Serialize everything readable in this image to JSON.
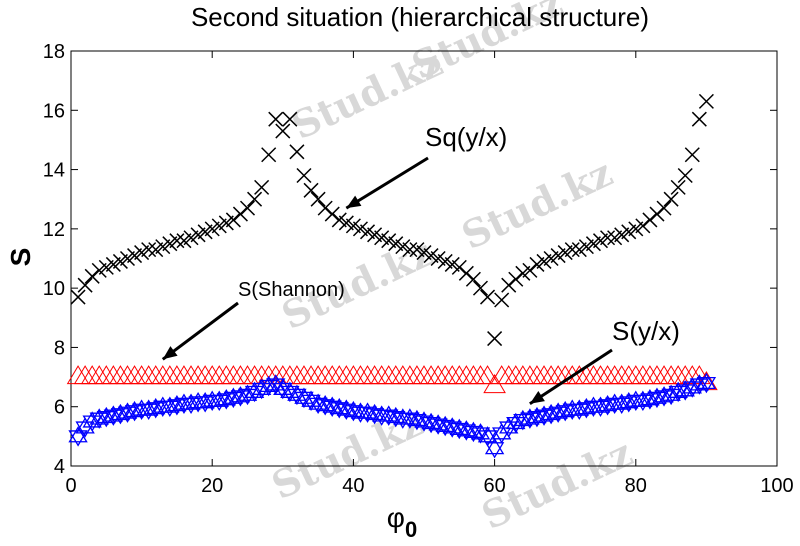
{
  "watermark": "Stud.kz",
  "chart_data": {
    "type": "scatter",
    "title": "Second situation (hierarchical structure)",
    "xlabel": "φ",
    "xlabel_sub": "0",
    "ylabel": "S",
    "xlim": [
      0,
      100
    ],
    "ylim": [
      4,
      18
    ],
    "xticks": [
      0,
      20,
      40,
      60,
      80,
      100
    ],
    "yticks": [
      4,
      6,
      8,
      10,
      12,
      14,
      16,
      18
    ],
    "grid": false,
    "annotations": [
      {
        "text": "Sq(y/x)",
        "arrow_to": [
          39,
          12.7
        ]
      },
      {
        "text": "S(Shannon)",
        "arrow_to": [
          13,
          7.6
        ]
      },
      {
        "text": "S(y/x)",
        "arrow_to": [
          65,
          6.1
        ]
      }
    ],
    "series": [
      {
        "name": "Sq(y/x)",
        "marker": "x",
        "color": "#000000",
        "x": [
          1,
          2,
          3,
          4,
          5,
          6,
          7,
          8,
          9,
          10,
          11,
          12,
          13,
          14,
          15,
          16,
          17,
          18,
          19,
          20,
          21,
          22,
          23,
          24,
          25,
          26,
          27,
          28,
          29,
          30,
          31,
          32,
          33,
          34,
          35,
          36,
          37,
          38,
          39,
          40,
          41,
          42,
          43,
          44,
          45,
          46,
          47,
          48,
          49,
          50,
          51,
          52,
          53,
          54,
          55,
          56,
          57,
          58,
          59,
          60,
          61,
          62,
          63,
          64,
          65,
          66,
          67,
          68,
          69,
          70,
          71,
          72,
          73,
          74,
          75,
          76,
          77,
          78,
          79,
          80,
          81,
          82,
          83,
          84,
          85,
          86,
          87,
          88,
          89,
          90
        ],
        "y": [
          9.7,
          10.1,
          10.4,
          10.6,
          10.7,
          10.8,
          10.9,
          11.0,
          11.1,
          11.2,
          11.3,
          11.3,
          11.4,
          11.5,
          11.6,
          11.6,
          11.7,
          11.8,
          11.9,
          12.0,
          12.1,
          12.2,
          12.3,
          12.5,
          12.7,
          13.0,
          13.4,
          14.5,
          15.7,
          15.3,
          15.7,
          14.6,
          13.8,
          13.3,
          13.0,
          12.7,
          12.5,
          12.3,
          12.2,
          12.1,
          12.0,
          11.9,
          11.8,
          11.7,
          11.6,
          11.5,
          11.4,
          11.3,
          11.3,
          11.2,
          11.1,
          11.0,
          10.9,
          10.8,
          10.7,
          10.5,
          10.3,
          10.0,
          9.7,
          8.3,
          9.6,
          10.1,
          10.3,
          10.5,
          10.6,
          10.8,
          10.9,
          11.0,
          11.1,
          11.2,
          11.3,
          11.3,
          11.4,
          11.5,
          11.6,
          11.7,
          11.7,
          11.8,
          11.9,
          12.0,
          12.1,
          12.3,
          12.5,
          12.7,
          13.0,
          13.4,
          13.8,
          14.5,
          15.7,
          16.3
        ]
      },
      {
        "name": "S(Shannon)",
        "marker": "triangle",
        "color": "#ff0000",
        "x": [
          1,
          2,
          3,
          4,
          5,
          6,
          7,
          8,
          9,
          10,
          11,
          12,
          13,
          14,
          15,
          16,
          17,
          18,
          19,
          20,
          21,
          22,
          23,
          24,
          25,
          26,
          27,
          28,
          29,
          30,
          31,
          32,
          33,
          34,
          35,
          36,
          37,
          38,
          39,
          40,
          41,
          42,
          43,
          44,
          45,
          46,
          47,
          48,
          49,
          50,
          51,
          52,
          53,
          54,
          55,
          56,
          57,
          58,
          59,
          60,
          61,
          62,
          63,
          64,
          65,
          66,
          67,
          68,
          69,
          70,
          71,
          72,
          73,
          74,
          75,
          76,
          77,
          78,
          79,
          80,
          81,
          82,
          83,
          84,
          85,
          86,
          87,
          88,
          89,
          90
        ],
        "y": [
          7.0,
          7.0,
          7.0,
          7.0,
          7.0,
          7.0,
          7.0,
          7.0,
          7.0,
          7.0,
          7.0,
          7.0,
          7.0,
          7.0,
          7.0,
          7.0,
          7.0,
          7.0,
          7.0,
          7.0,
          7.0,
          7.0,
          7.0,
          7.0,
          7.0,
          7.0,
          7.0,
          7.0,
          7.0,
          7.0,
          7.0,
          7.0,
          7.0,
          7.0,
          7.0,
          7.0,
          7.0,
          7.0,
          7.0,
          7.0,
          7.0,
          7.0,
          7.0,
          7.0,
          7.0,
          7.0,
          7.0,
          7.0,
          7.0,
          7.0,
          7.0,
          7.0,
          7.0,
          7.0,
          7.0,
          7.0,
          7.0,
          7.0,
          7.0,
          6.7,
          7.0,
          7.0,
          7.0,
          7.0,
          7.0,
          7.0,
          7.0,
          7.0,
          7.0,
          7.0,
          7.0,
          7.0,
          7.0,
          7.0,
          7.0,
          7.0,
          7.0,
          7.0,
          7.0,
          7.0,
          7.0,
          7.0,
          7.0,
          7.0,
          7.0,
          7.0,
          7.0,
          7.0,
          7.0,
          6.8
        ]
      },
      {
        "name": "S(y/x)",
        "marker": "hexagram",
        "color": "#0000ff",
        "x": [
          1,
          2,
          3,
          4,
          5,
          6,
          7,
          8,
          9,
          10,
          11,
          12,
          13,
          14,
          15,
          16,
          17,
          18,
          19,
          20,
          21,
          22,
          23,
          24,
          25,
          26,
          27,
          28,
          29,
          30,
          31,
          32,
          33,
          34,
          35,
          36,
          37,
          38,
          39,
          40,
          41,
          42,
          43,
          44,
          45,
          46,
          47,
          48,
          49,
          50,
          51,
          52,
          53,
          54,
          55,
          56,
          57,
          58,
          59,
          60,
          61,
          62,
          63,
          64,
          65,
          66,
          67,
          68,
          69,
          70,
          71,
          72,
          73,
          74,
          75,
          76,
          77,
          78,
          79,
          80,
          81,
          82,
          83,
          84,
          85,
          86,
          87,
          88,
          89,
          90
        ],
        "y": [
          5.0,
          5.3,
          5.5,
          5.6,
          5.65,
          5.7,
          5.75,
          5.8,
          5.85,
          5.9,
          5.9,
          5.95,
          6.0,
          6.0,
          6.05,
          6.1,
          6.1,
          6.15,
          6.15,
          6.2,
          6.2,
          6.25,
          6.3,
          6.35,
          6.4,
          6.5,
          6.6,
          6.7,
          6.75,
          6.6,
          6.5,
          6.4,
          6.3,
          6.2,
          6.1,
          6.05,
          6.0,
          5.95,
          5.9,
          5.85,
          5.8,
          5.8,
          5.75,
          5.7,
          5.7,
          5.65,
          5.6,
          5.6,
          5.55,
          5.5,
          5.45,
          5.4,
          5.35,
          5.3,
          5.25,
          5.2,
          5.15,
          5.1,
          5.0,
          4.6,
          5.1,
          5.3,
          5.45,
          5.55,
          5.6,
          5.65,
          5.7,
          5.75,
          5.8,
          5.85,
          5.9,
          5.9,
          5.95,
          6.0,
          6.0,
          6.05,
          6.1,
          6.1,
          6.15,
          6.2,
          6.2,
          6.25,
          6.3,
          6.35,
          6.4,
          6.5,
          6.55,
          6.65,
          6.75,
          6.8
        ]
      }
    ]
  }
}
